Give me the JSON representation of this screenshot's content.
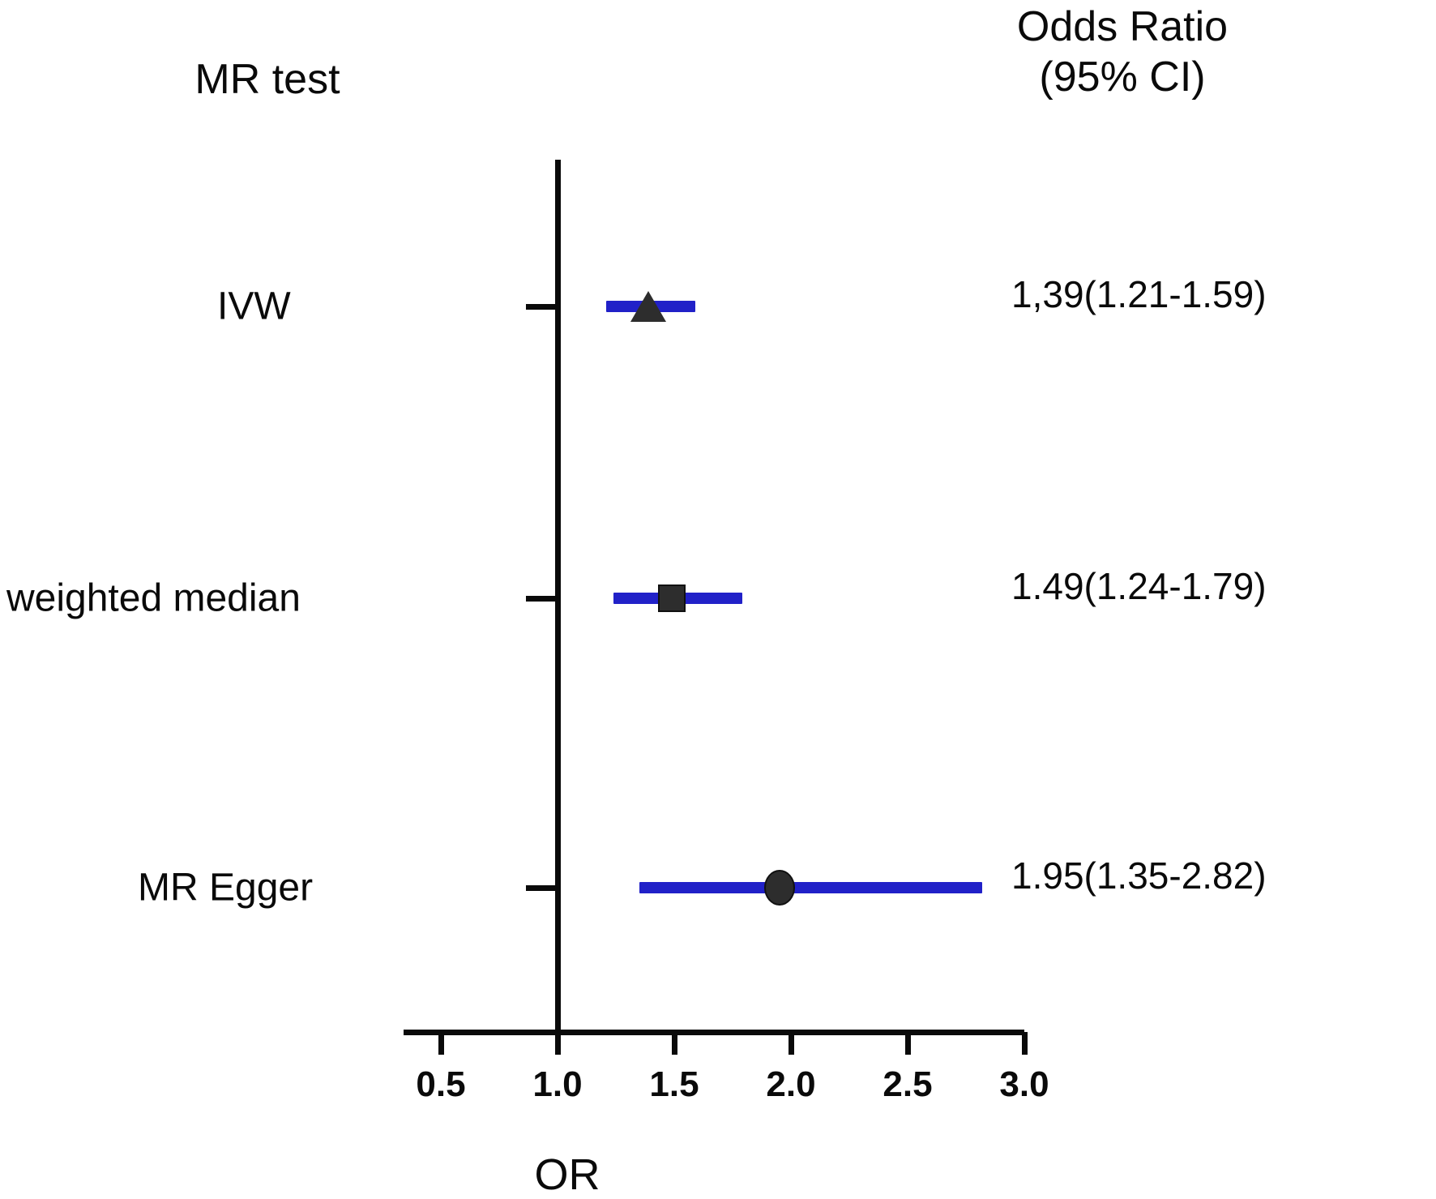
{
  "header": {
    "left_column_title": "MR test",
    "right_column_title_line1": "Odds Ratio",
    "right_column_title_line2": "(95% CI)"
  },
  "chart_data": {
    "type": "scatter",
    "subtype": "forest-plot",
    "title": "",
    "xlabel": "OR",
    "ylabel": "MR test",
    "right_column_header": "Odds Ratio (95% CI)",
    "axis": {
      "min": 0.5,
      "max": 3.0,
      "tick_labels": [
        "0.5",
        "1.0",
        "1.5",
        "2.0",
        "2.5",
        "3.0"
      ],
      "tick_values": [
        0.5,
        1.0,
        1.5,
        2.0,
        2.5,
        3.0
      ],
      "reference_line": 1.0,
      "grid": false
    },
    "rows": [
      {
        "label": "IVW",
        "marker": "triangle",
        "or": 1.39,
        "ci_low": 1.21,
        "ci_high": 1.59,
        "display": "1,39(1.21-1.59)"
      },
      {
        "label": "weighted median",
        "marker": "square",
        "or": 1.49,
        "ci_low": 1.24,
        "ci_high": 1.79,
        "display": "1.49(1.24-1.79)"
      },
      {
        "label": "MR Egger",
        "marker": "circle",
        "or": 1.95,
        "ci_low": 1.35,
        "ci_high": 2.82,
        "display": "1.95(1.35-2.82)"
      }
    ],
    "colors": {
      "ci_bar": "#2121c8",
      "marker": "#2d2d2d",
      "axis": "#0a0a0a"
    }
  }
}
